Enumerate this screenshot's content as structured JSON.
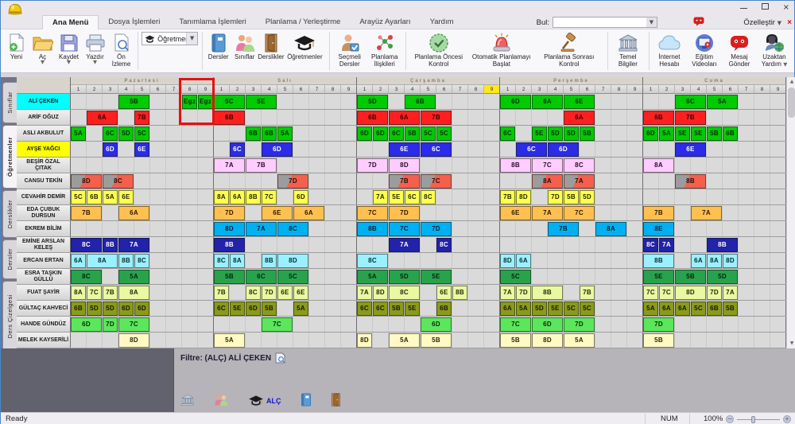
{
  "window": {
    "minimize": "–",
    "maximize": "",
    "close": "×"
  },
  "tabrow": {
    "tabs": [
      "Ana Menü",
      "Dosya İşlemleri",
      "Tanımlama İşlemleri",
      "Planlama / Yerleştirme",
      "Arayüz Ayarları",
      "Yardım"
    ],
    "active_tab": "Ana Menü",
    "find_label": "Bul:",
    "message_send": "Mesaj Gönder",
    "customize": "Özelleştir",
    "close_x": "×"
  },
  "ribbon": {
    "file": {
      "new": "Yeni",
      "open": "Aç",
      "save": "Kaydet",
      "print": "Yazdır",
      "preview": "Ön İzleme"
    },
    "combo_value": "Öğretmenler",
    "entities": {
      "lessons": "Dersler",
      "classes": "Sınıflar",
      "classrooms": "Derslikler",
      "teachers": "Öğretmenler"
    },
    "relations": {
      "elective": "Seçmeli Dersler",
      "plan_rel": "Planlama İlişkileri"
    },
    "planning": {
      "pre_check": "Planlama Öncesi Kontrol",
      "auto_start": "Otomatik Planlamayı Başlat",
      "post_check": "Planlama Sonrası Kontrol"
    },
    "info": {
      "basic": "Temel Bilgiler"
    },
    "online": {
      "internet": "İnternet Hesabı",
      "videos": "Eğitim Videoları",
      "message": "Mesaj Gönder",
      "remote": "Uzaktan Yardım"
    }
  },
  "side_tabs": [
    "Sınıflar",
    "Öğretmenler",
    "Derslikler",
    "Dersler",
    "Ders Çizelgesi"
  ],
  "side_active": "Öğretmenler",
  "grid": {
    "days": [
      "Pazartesi",
      "Salı",
      "Çarşamba",
      "Perşembe",
      "Cuma"
    ],
    "periods": [
      1,
      2,
      3,
      4,
      5,
      6,
      7,
      8,
      9
    ],
    "highlight_header": {
      "day": 2,
      "period": 9
    },
    "red_selection": {
      "day": 0,
      "periods": [
        8,
        9
      ],
      "rows": [
        0,
        1
      ]
    }
  },
  "teachers": [
    {
      "name": "ALİ ÇEKEN",
      "name_bg": "#00FFFF",
      "color": "#00CB00",
      "text": "#0A2A0A",
      "cells": [
        [
          0,
          4,
          2,
          "5B"
        ],
        [
          0,
          8,
          1,
          "Egz"
        ],
        [
          0,
          9,
          1,
          "Egz"
        ],
        [
          1,
          1,
          2,
          "5C"
        ],
        [
          1,
          3,
          2,
          "5E"
        ],
        [
          2,
          1,
          2,
          "5D"
        ],
        [
          2,
          4,
          2,
          "6B"
        ],
        [
          3,
          1,
          2,
          "6D"
        ],
        [
          3,
          3,
          2,
          "6A"
        ],
        [
          3,
          5,
          2,
          "6E"
        ],
        [
          4,
          3,
          2,
          "6C"
        ],
        [
          4,
          5,
          2,
          "5A"
        ]
      ]
    },
    {
      "name": "ARİF OĞUZ",
      "color": "#FF1F1F",
      "text": "#2A0505",
      "cells": [
        [
          0,
          2,
          2,
          "6A"
        ],
        [
          0,
          5,
          1,
          "7B"
        ],
        [
          1,
          1,
          2,
          "6B"
        ],
        [
          2,
          1,
          2,
          "6B"
        ],
        [
          2,
          3,
          2,
          "6A"
        ],
        [
          2,
          5,
          2,
          "7B"
        ],
        [
          3,
          5,
          2,
          "6A"
        ],
        [
          4,
          1,
          2,
          "6B"
        ],
        [
          4,
          3,
          2,
          "7B"
        ]
      ]
    },
    {
      "name": "ASLI AKBULUT",
      "color": "#00CB00",
      "text": "#0A2A0A",
      "cells": [
        [
          0,
          1,
          1,
          "5A"
        ],
        [
          0,
          3,
          1,
          "6C"
        ],
        [
          0,
          4,
          1,
          "5D"
        ],
        [
          0,
          5,
          1,
          "5C"
        ],
        [
          1,
          3,
          1,
          "6B"
        ],
        [
          1,
          4,
          1,
          "6B"
        ],
        [
          1,
          5,
          1,
          "5A"
        ],
        [
          2,
          1,
          1,
          "6D"
        ],
        [
          2,
          2,
          1,
          "6D"
        ],
        [
          2,
          3,
          1,
          "6C"
        ],
        [
          2,
          4,
          1,
          "5B"
        ],
        [
          2,
          5,
          1,
          "5C"
        ],
        [
          2,
          6,
          1,
          "5C"
        ],
        [
          3,
          1,
          1,
          "6C"
        ],
        [
          3,
          3,
          1,
          "5E"
        ],
        [
          3,
          4,
          1,
          "5D"
        ],
        [
          3,
          5,
          1,
          "5D"
        ],
        [
          3,
          6,
          1,
          "5B"
        ],
        [
          4,
          1,
          1,
          "6D"
        ],
        [
          4,
          2,
          1,
          "5A"
        ],
        [
          4,
          3,
          1,
          "5E"
        ],
        [
          4,
          4,
          1,
          "5E"
        ],
        [
          4,
          5,
          1,
          "5B"
        ],
        [
          4,
          6,
          1,
          "6B"
        ]
      ]
    },
    {
      "name": "AYŞE YAĞCI",
      "name_bg": "#FFFF00",
      "color": "#2B2BE8",
      "text": "#FFFFFF",
      "cells": [
        [
          0,
          3,
          1,
          "6D"
        ],
        [
          0,
          5,
          1,
          "6E"
        ],
        [
          1,
          2,
          1,
          "6C"
        ],
        [
          1,
          4,
          2,
          "6D"
        ],
        [
          2,
          3,
          2,
          "6E"
        ],
        [
          2,
          5,
          2,
          "6C"
        ],
        [
          3,
          2,
          2,
          "6C"
        ],
        [
          3,
          4,
          2,
          "6D"
        ],
        [
          4,
          3,
          2,
          "6E"
        ]
      ]
    },
    {
      "name": "BEŞİR ÖZAL ÇITAK",
      "color": "#FFCCFF",
      "text": "#2A0A2A",
      "cells": [
        [
          1,
          1,
          2,
          "7A"
        ],
        [
          1,
          3,
          2,
          "7B"
        ],
        [
          2,
          1,
          2,
          "7D"
        ],
        [
          2,
          3,
          2,
          "8D"
        ],
        [
          3,
          1,
          2,
          "8B"
        ],
        [
          3,
          3,
          2,
          "7C"
        ],
        [
          3,
          5,
          2,
          "8C"
        ],
        [
          4,
          1,
          2,
          "8A"
        ]
      ]
    },
    {
      "name": "CANSU TEKİN",
      "color": "#F4604C",
      "text": "#201010",
      "diagonal": true,
      "cells": [
        [
          0,
          1,
          2,
          "8D"
        ],
        [
          0,
          3,
          2,
          "8C"
        ],
        [
          1,
          5,
          2,
          "7D"
        ],
        [
          2,
          3,
          2,
          "7B"
        ],
        [
          2,
          5,
          2,
          "7C"
        ],
        [
          3,
          3,
          2,
          "8A"
        ],
        [
          3,
          5,
          2,
          "7A"
        ],
        [
          4,
          3,
          2,
          "8B"
        ]
      ]
    },
    {
      "name": "CEVAHİR DEMİR",
      "color": "#FFFF4D",
      "text": "#26260A",
      "cells": [
        [
          0,
          1,
          1,
          "5C"
        ],
        [
          0,
          2,
          1,
          "6B"
        ],
        [
          0,
          3,
          1,
          "5A"
        ],
        [
          0,
          4,
          1,
          "6E"
        ],
        [
          1,
          1,
          1,
          "8A"
        ],
        [
          1,
          2,
          1,
          "6A"
        ],
        [
          1,
          3,
          1,
          "8B"
        ],
        [
          1,
          4,
          1,
          "7C"
        ],
        [
          1,
          6,
          1,
          "6D"
        ],
        [
          2,
          2,
          1,
          "7A"
        ],
        [
          2,
          3,
          1,
          "5E"
        ],
        [
          2,
          4,
          1,
          "6C"
        ],
        [
          2,
          5,
          1,
          "8C"
        ],
        [
          3,
          1,
          1,
          "7B"
        ],
        [
          3,
          2,
          1,
          "8D"
        ],
        [
          3,
          4,
          1,
          "7D"
        ],
        [
          3,
          5,
          1,
          "5B"
        ],
        [
          3,
          6,
          1,
          "5D"
        ]
      ]
    },
    {
      "name": "EDA ÇUBUK DURSUN",
      "color": "#FFC050",
      "text": "#2A1A05",
      "cells": [
        [
          0,
          1,
          2,
          "7B"
        ],
        [
          0,
          4,
          2,
          "6A"
        ],
        [
          1,
          1,
          2,
          "7D"
        ],
        [
          1,
          4,
          2,
          "6E"
        ],
        [
          1,
          6,
          2,
          "6A"
        ],
        [
          2,
          1,
          2,
          "7C"
        ],
        [
          2,
          3,
          2,
          "7D"
        ],
        [
          3,
          1,
          2,
          "6E"
        ],
        [
          3,
          3,
          2,
          "7A"
        ],
        [
          3,
          5,
          2,
          "7C"
        ],
        [
          4,
          1,
          2,
          "7B"
        ],
        [
          4,
          4,
          2,
          "7A"
        ]
      ]
    },
    {
      "name": "EKREM BİLİM",
      "color": "#00B0F0",
      "text": "#06202E",
      "cells": [
        [
          1,
          1,
          2,
          "8D"
        ],
        [
          1,
          3,
          2,
          "7A"
        ],
        [
          1,
          5,
          2,
          "8C"
        ],
        [
          2,
          1,
          2,
          "8B"
        ],
        [
          2,
          3,
          2,
          "7C"
        ],
        [
          2,
          5,
          2,
          "7D"
        ],
        [
          3,
          4,
          2,
          "7B"
        ],
        [
          3,
          7,
          2,
          "8A"
        ],
        [
          4,
          1,
          2,
          "8E"
        ]
      ]
    },
    {
      "name": "EMİNE ARSLAN KELEŞ",
      "color": "#2222AA",
      "text": "#FFFFFF",
      "cells": [
        [
          0,
          1,
          2,
          "8C"
        ],
        [
          0,
          3,
          1,
          "8B"
        ],
        [
          0,
          4,
          2,
          "7A"
        ],
        [
          1,
          1,
          2,
          "8B"
        ],
        [
          2,
          3,
          2,
          "7A"
        ],
        [
          2,
          6,
          1,
          "8C"
        ],
        [
          4,
          1,
          1,
          "8C"
        ],
        [
          4,
          2,
          1,
          "7A"
        ],
        [
          4,
          5,
          2,
          "8B"
        ]
      ]
    },
    {
      "name": "ERCAN ERTAN",
      "color": "#9BF0FF",
      "text": "#0A2A30",
      "cells": [
        [
          0,
          1,
          1,
          "6A"
        ],
        [
          0,
          2,
          2,
          "8A"
        ],
        [
          0,
          4,
          1,
          "8B"
        ],
        [
          0,
          5,
          1,
          "8C"
        ],
        [
          1,
          1,
          1,
          "8C"
        ],
        [
          1,
          2,
          1,
          "8A"
        ],
        [
          1,
          4,
          1,
          "8B"
        ],
        [
          1,
          5,
          2,
          "8D"
        ],
        [
          2,
          1,
          2,
          "8C"
        ],
        [
          3,
          1,
          1,
          "8D"
        ],
        [
          3,
          2,
          1,
          "6A"
        ],
        [
          4,
          1,
          2,
          "8B"
        ],
        [
          4,
          4,
          1,
          "6A"
        ],
        [
          4,
          5,
          1,
          "8A"
        ],
        [
          4,
          6,
          1,
          "8D"
        ]
      ]
    },
    {
      "name": "ESRA TAŞKIN GÜLLÜ",
      "color": "#28A34C",
      "text": "#05230F",
      "cells": [
        [
          0,
          1,
          2,
          "8C"
        ],
        [
          0,
          4,
          2,
          "5A"
        ],
        [
          1,
          1,
          2,
          "5B"
        ],
        [
          1,
          3,
          2,
          "6C"
        ],
        [
          1,
          5,
          2,
          "5C"
        ],
        [
          2,
          1,
          2,
          "5A"
        ],
        [
          2,
          3,
          2,
          "5D"
        ],
        [
          2,
          5,
          2,
          "5E"
        ],
        [
          3,
          1,
          2,
          "5C"
        ],
        [
          4,
          1,
          2,
          "5E"
        ],
        [
          4,
          3,
          2,
          "5B"
        ],
        [
          4,
          5,
          2,
          "5D"
        ]
      ]
    },
    {
      "name": "FUAT ŞAYİR",
      "color": "#E9F9A1",
      "text": "#25290A",
      "cells": [
        [
          0,
          1,
          1,
          "8A"
        ],
        [
          0,
          2,
          1,
          "7C"
        ],
        [
          0,
          3,
          1,
          "7B"
        ],
        [
          0,
          4,
          2,
          "8A"
        ],
        [
          1,
          1,
          1,
          "7B"
        ],
        [
          1,
          3,
          1,
          "8C"
        ],
        [
          1,
          4,
          1,
          "7D"
        ],
        [
          1,
          5,
          1,
          "6E"
        ],
        [
          1,
          6,
          1,
          "6E"
        ],
        [
          2,
          1,
          1,
          "7A"
        ],
        [
          2,
          2,
          1,
          "8D"
        ],
        [
          2,
          3,
          2,
          "8C"
        ],
        [
          2,
          6,
          1,
          "6E"
        ],
        [
          2,
          7,
          1,
          "8B"
        ],
        [
          3,
          1,
          1,
          "7A"
        ],
        [
          3,
          2,
          1,
          "7D"
        ],
        [
          3,
          3,
          2,
          "8B"
        ],
        [
          3,
          6,
          1,
          "7B"
        ],
        [
          4,
          1,
          1,
          "7C"
        ],
        [
          4,
          2,
          1,
          "7C"
        ],
        [
          4,
          3,
          2,
          "8D"
        ],
        [
          4,
          5,
          1,
          "7D"
        ],
        [
          4,
          6,
          1,
          "7A"
        ]
      ]
    },
    {
      "name": "GÜLTAÇ KAHVECİ",
      "color": "#8A9A1B",
      "text": "#161A02",
      "cells": [
        [
          0,
          1,
          1,
          "6B"
        ],
        [
          0,
          2,
          1,
          "5D"
        ],
        [
          0,
          3,
          1,
          "5D"
        ],
        [
          0,
          4,
          1,
          "6D"
        ],
        [
          0,
          5,
          1,
          "6D"
        ],
        [
          1,
          1,
          1,
          "6C"
        ],
        [
          1,
          2,
          1,
          "5E"
        ],
        [
          1,
          3,
          1,
          "6D"
        ],
        [
          1,
          4,
          1,
          "5B"
        ],
        [
          1,
          6,
          1,
          "5A"
        ],
        [
          2,
          1,
          1,
          "6C"
        ],
        [
          2,
          2,
          1,
          "6C"
        ],
        [
          2,
          3,
          1,
          "5B"
        ],
        [
          2,
          4,
          1,
          "5E"
        ],
        [
          2,
          6,
          1,
          "6B"
        ],
        [
          3,
          1,
          1,
          "6A"
        ],
        [
          3,
          2,
          1,
          "5A"
        ],
        [
          3,
          3,
          1,
          "5D"
        ],
        [
          3,
          4,
          1,
          "5E"
        ],
        [
          3,
          5,
          1,
          "5C"
        ],
        [
          3,
          6,
          1,
          "5C"
        ],
        [
          4,
          1,
          1,
          "5A"
        ],
        [
          4,
          2,
          1,
          "6A"
        ],
        [
          4,
          3,
          1,
          "6A"
        ],
        [
          4,
          4,
          1,
          "5C"
        ],
        [
          4,
          5,
          1,
          "6B"
        ],
        [
          4,
          6,
          1,
          "5B"
        ]
      ]
    },
    {
      "name": "HANDE GÜNDÜZ",
      "color": "#5CE65C",
      "text": "#0A2A0A",
      "cells": [
        [
          0,
          1,
          2,
          "6D"
        ],
        [
          0,
          3,
          1,
          "7D"
        ],
        [
          0,
          4,
          2,
          "7C"
        ],
        [
          1,
          4,
          2,
          "7C"
        ],
        [
          2,
          5,
          2,
          "6D"
        ],
        [
          3,
          1,
          2,
          "7C"
        ],
        [
          3,
          3,
          2,
          "6D"
        ],
        [
          3,
          5,
          2,
          "7D"
        ],
        [
          4,
          1,
          2,
          "7D"
        ]
      ]
    },
    {
      "name": "MELEK KAYSERİLİ",
      "color": "#FFF9C4",
      "text": "#2A2505",
      "cells": [
        [
          0,
          4,
          2,
          "8D"
        ],
        [
          1,
          1,
          2,
          "5A"
        ],
        [
          2,
          1,
          1,
          "8D"
        ],
        [
          2,
          3,
          2,
          "5A"
        ],
        [
          2,
          5,
          2,
          "5B"
        ],
        [
          3,
          1,
          2,
          "5B"
        ],
        [
          3,
          3,
          2,
          "8D"
        ],
        [
          3,
          5,
          2,
          "5A"
        ],
        [
          4,
          1,
          2,
          "5B"
        ]
      ]
    }
  ],
  "bottom": {
    "filter_label": "Filtre: (ALÇ) ALİ ÇEKEN",
    "cap_code": "ALÇ"
  },
  "status": {
    "ready": "Ready",
    "num": "NUM",
    "zoom": "100%"
  }
}
